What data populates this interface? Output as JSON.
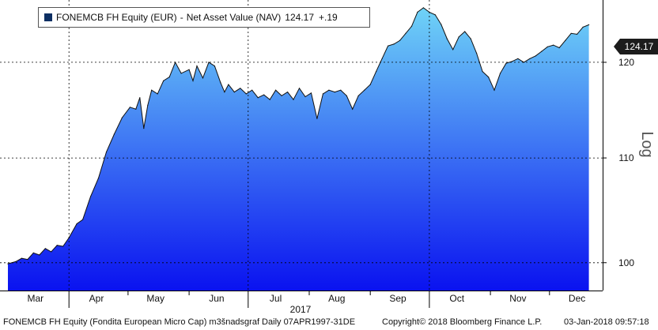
{
  "legend": {
    "ticker": "FONEMCB FH Equity (EUR)",
    "separator": "-",
    "description": "Net Asset Value (NAV)",
    "last": "124.17",
    "change": "+.19"
  },
  "last_value_tag": "124.17",
  "scale_label": "Log",
  "year_label": "2017",
  "footer": {
    "left": "FONEMCB FH Equity (Fondita European Micro Cap) m3šnadsgraf Daily 07APR1997-31DE",
    "center": "Copyright© 2018 Bloomberg Finance L.P.",
    "right": "03-Jan-2018 09:57:18"
  },
  "colors": {
    "fill_top": "#6fd3f7",
    "fill_bottom": "#0a12f0",
    "line": "#111111",
    "grid": "#000000"
  },
  "chart_data": {
    "type": "area",
    "title": "FONEMCB FH Equity (EUR) - Net Asset Value (NAV)",
    "x_unit": "date (2017)",
    "month_labels": [
      "Mar",
      "Apr",
      "May",
      "Jun",
      "Jul",
      "Aug",
      "Sep",
      "Oct",
      "Nov",
      "Dec"
    ],
    "ylim": [
      97.5,
      127
    ],
    "yscale": "log",
    "yticks": [
      100,
      110,
      120
    ],
    "grid": true,
    "legend_position": "top-left",
    "series": [
      {
        "name": "Net Asset Value (NAV)",
        "points": [
          [
            "2017-03-01",
            99.9
          ],
          [
            "2017-03-05",
            100.1
          ],
          [
            "2017-03-08",
            100.4
          ],
          [
            "2017-03-11",
            100.3
          ],
          [
            "2017-03-14",
            100.9
          ],
          [
            "2017-03-17",
            100.7
          ],
          [
            "2017-03-20",
            101.3
          ],
          [
            "2017-03-23",
            101.0
          ],
          [
            "2017-03-26",
            101.6
          ],
          [
            "2017-03-29",
            101.5
          ],
          [
            "2017-04-01",
            102.3
          ],
          [
            "2017-04-05",
            103.6
          ],
          [
            "2017-04-08",
            104.0
          ],
          [
            "2017-04-12",
            106.2
          ],
          [
            "2017-04-16",
            108.0
          ],
          [
            "2017-04-20",
            110.6
          ],
          [
            "2017-04-24",
            112.4
          ],
          [
            "2017-04-28",
            114.1
          ],
          [
            "2017-05-02",
            115.2
          ],
          [
            "2017-05-05",
            115.0
          ],
          [
            "2017-05-07",
            116.2
          ],
          [
            "2017-05-09",
            113.0
          ],
          [
            "2017-05-11",
            115.4
          ],
          [
            "2017-05-13",
            117.0
          ],
          [
            "2017-05-16",
            116.6
          ],
          [
            "2017-05-19",
            118.0
          ],
          [
            "2017-05-22",
            118.4
          ],
          [
            "2017-05-25",
            120.0
          ],
          [
            "2017-05-28",
            118.8
          ],
          [
            "2017-06-01",
            119.2
          ],
          [
            "2017-06-03",
            118.0
          ],
          [
            "2017-06-05",
            119.6
          ],
          [
            "2017-06-08",
            118.3
          ],
          [
            "2017-06-11",
            120.0
          ],
          [
            "2017-06-14",
            119.6
          ],
          [
            "2017-06-17",
            117.8
          ],
          [
            "2017-06-19",
            116.8
          ],
          [
            "2017-06-21",
            117.6
          ],
          [
            "2017-06-24",
            116.8
          ],
          [
            "2017-06-27",
            117.2
          ],
          [
            "2017-06-30",
            116.6
          ],
          [
            "2017-07-03",
            117.0
          ],
          [
            "2017-07-06",
            116.2
          ],
          [
            "2017-07-09",
            116.5
          ],
          [
            "2017-07-12",
            116.0
          ],
          [
            "2017-07-15",
            117.0
          ],
          [
            "2017-07-18",
            116.4
          ],
          [
            "2017-07-21",
            116.8
          ],
          [
            "2017-07-24",
            116.0
          ],
          [
            "2017-07-27",
            117.2
          ],
          [
            "2017-07-30",
            116.3
          ],
          [
            "2017-08-02",
            116.7
          ],
          [
            "2017-08-05",
            114.0
          ],
          [
            "2017-08-08",
            116.6
          ],
          [
            "2017-08-11",
            117.0
          ],
          [
            "2017-08-14",
            116.8
          ],
          [
            "2017-08-17",
            117.0
          ],
          [
            "2017-08-20",
            116.4
          ],
          [
            "2017-08-23",
            115.0
          ],
          [
            "2017-08-26",
            116.4
          ],
          [
            "2017-08-29",
            117.0
          ],
          [
            "2017-09-01",
            117.6
          ],
          [
            "2017-09-04",
            119.0
          ],
          [
            "2017-09-07",
            120.4
          ],
          [
            "2017-09-10",
            121.8
          ],
          [
            "2017-09-13",
            122.0
          ],
          [
            "2017-09-16",
            122.4
          ],
          [
            "2017-09-19",
            123.2
          ],
          [
            "2017-09-22",
            124.0
          ],
          [
            "2017-09-25",
            125.6
          ],
          [
            "2017-09-28",
            126.1
          ],
          [
            "2017-10-01",
            125.6
          ],
          [
            "2017-10-04",
            125.3
          ],
          [
            "2017-10-07",
            124.2
          ],
          [
            "2017-10-10",
            122.6
          ],
          [
            "2017-10-13",
            121.4
          ],
          [
            "2017-10-16",
            122.8
          ],
          [
            "2017-10-19",
            123.4
          ],
          [
            "2017-10-22",
            122.6
          ],
          [
            "2017-10-25",
            121.0
          ],
          [
            "2017-10-28",
            119.0
          ],
          [
            "2017-10-31",
            118.4
          ],
          [
            "2017-11-03",
            117.0
          ],
          [
            "2017-11-06",
            118.8
          ],
          [
            "2017-11-09",
            119.9
          ],
          [
            "2017-11-12",
            120.1
          ],
          [
            "2017-11-15",
            120.4
          ],
          [
            "2017-11-18",
            120.0
          ],
          [
            "2017-11-21",
            120.4
          ],
          [
            "2017-11-24",
            120.7
          ],
          [
            "2017-11-27",
            121.2
          ],
          [
            "2017-11-30",
            121.7
          ],
          [
            "2017-12-03",
            121.9
          ],
          [
            "2017-12-06",
            121.6
          ],
          [
            "2017-12-09",
            122.4
          ],
          [
            "2017-12-12",
            123.2
          ],
          [
            "2017-12-15",
            123.1
          ],
          [
            "2017-12-18",
            123.9
          ],
          [
            "2017-12-21",
            124.17
          ]
        ]
      }
    ]
  }
}
